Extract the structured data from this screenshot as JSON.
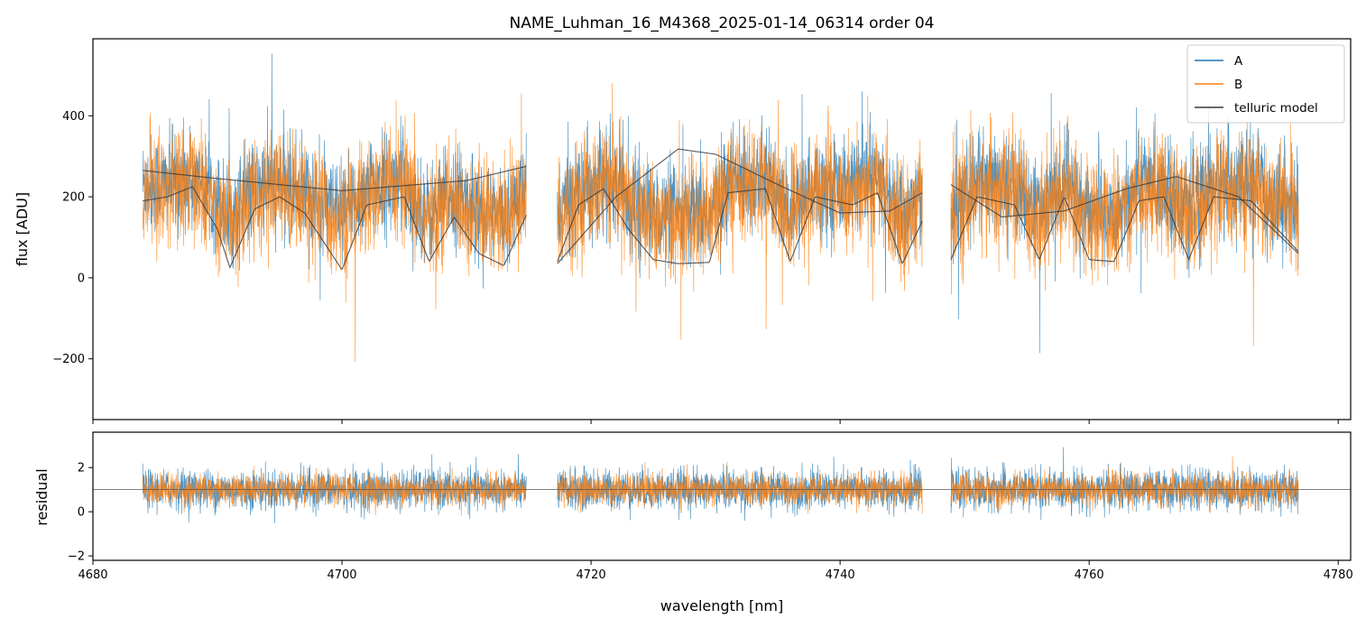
{
  "title": "NAME_Luhman_16_M4368_2025-01-14_06314  order 04",
  "colors": {
    "A": "#1f77b4",
    "B": "#ff7f0e",
    "telluric": "#3a3a3a",
    "reference_line": "#555555"
  },
  "chart_data": [
    {
      "type": "line",
      "panel": "top",
      "ylabel": "flux [ADU]",
      "xlim": [
        4680,
        4781
      ],
      "ylim": [
        -350,
        590
      ],
      "y_ticks": [
        -200,
        0,
        200,
        400
      ],
      "y_tick_labels": [
        "−200",
        "0",
        "200",
        "400"
      ],
      "legend": {
        "placement": "top-right",
        "entries": [
          "A",
          "B",
          "telluric model"
        ]
      },
      "segments": [
        [
          4684.0,
          4714.8
        ],
        [
          4717.3,
          4746.6
        ],
        [
          4748.9,
          4776.8
        ]
      ],
      "series": [
        {
          "name": "A",
          "level": 225,
          "noise": 60
        },
        {
          "name": "B",
          "level": 200,
          "noise": 70
        },
        {
          "name": "telluric model",
          "continuum_points": [
            [
              4684.0,
              265
            ],
            [
              4690.0,
              245
            ],
            [
              4700.0,
              215
            ],
            [
              4710.0,
              240
            ],
            [
              4714.8,
              275
            ],
            [
              4717.3,
              35
            ],
            [
              4722.0,
              200
            ],
            [
              4727.0,
              318
            ],
            [
              4730.0,
              305
            ],
            [
              4735.0,
              230
            ],
            [
              4740.0,
              160
            ],
            [
              4744.0,
              165
            ],
            [
              4746.6,
              210
            ],
            [
              4748.9,
              230
            ],
            [
              4753.0,
              150
            ],
            [
              4758.0,
              165
            ],
            [
              4763.0,
              220
            ],
            [
              4767.0,
              250
            ],
            [
              4772.0,
              200
            ],
            [
              4776.8,
              60
            ]
          ],
          "absorption_model_points": [
            [
              4684.0,
              190
            ],
            [
              4686.0,
              200
            ],
            [
              4688.0,
              225
            ],
            [
              4690.0,
              120
            ],
            [
              4691.0,
              25
            ],
            [
              4693.0,
              170
            ],
            [
              4695.0,
              200
            ],
            [
              4697.0,
              160
            ],
            [
              4700.0,
              20
            ],
            [
              4702.0,
              180
            ],
            [
              4705.0,
              200
            ],
            [
              4707.0,
              40
            ],
            [
              4709.0,
              150
            ],
            [
              4711.0,
              60
            ],
            [
              4713.0,
              30
            ],
            [
              4714.8,
              155
            ],
            [
              4717.3,
              40
            ],
            [
              4719.0,
              180
            ],
            [
              4721.0,
              220
            ],
            [
              4723.0,
              120
            ],
            [
              4725.0,
              45
            ],
            [
              4727.0,
              35
            ],
            [
              4729.5,
              38
            ],
            [
              4731.0,
              210
            ],
            [
              4734.0,
              220
            ],
            [
              4736.0,
              40
            ],
            [
              4738.0,
              200
            ],
            [
              4741.0,
              180
            ],
            [
              4743.0,
              210
            ],
            [
              4745.0,
              35
            ],
            [
              4746.6,
              140
            ],
            [
              4748.9,
              45
            ],
            [
              4751.0,
              200
            ],
            [
              4754.0,
              180
            ],
            [
              4756.0,
              45
            ],
            [
              4758.0,
              200
            ],
            [
              4760.0,
              45
            ],
            [
              4762.0,
              40
            ],
            [
              4764.0,
              190
            ],
            [
              4766.0,
              200
            ],
            [
              4768.0,
              45
            ],
            [
              4770.0,
              200
            ],
            [
              4773.0,
              190
            ],
            [
              4776.8,
              65
            ]
          ]
        }
      ]
    },
    {
      "type": "line",
      "panel": "bottom",
      "xlabel": "wavelength [nm]",
      "ylabel": "residual",
      "xlim": [
        4680,
        4781
      ],
      "ylim": [
        -2.2,
        3.6
      ],
      "y_ticks": [
        -2,
        0,
        2
      ],
      "y_tick_labels": [
        "−2",
        "0",
        "2"
      ],
      "x_ticks": [
        4680,
        4700,
        4720,
        4740,
        4760,
        4780
      ],
      "x_tick_labels": [
        "4680",
        "4700",
        "4720",
        "4740",
        "4760",
        "4780"
      ],
      "reference_line": 1.0,
      "segments": [
        [
          4684.0,
          4714.8
        ],
        [
          4717.3,
          4746.6
        ],
        [
          4748.9,
          4776.8
        ]
      ],
      "series": [
        {
          "name": "A",
          "level": 1.0,
          "noise": 0.45
        },
        {
          "name": "B",
          "level": 1.0,
          "noise": 0.35
        }
      ]
    }
  ]
}
